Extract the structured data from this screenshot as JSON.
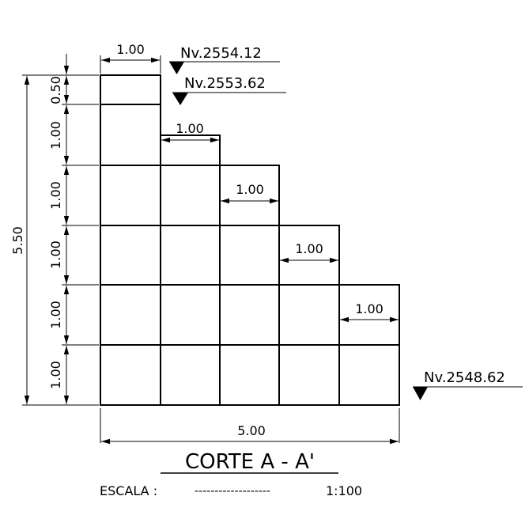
{
  "dimensions": {
    "top_width": "1.00",
    "step_widths": [
      "1.00",
      "1.00",
      "1.00",
      "1.00"
    ],
    "total_width": "5.00",
    "total_height": "5.50",
    "heights": [
      "0.50",
      "1.00",
      "1.00",
      "1.00",
      "1.00",
      "1.00"
    ]
  },
  "levels": {
    "top": "Nv.2554.12",
    "second": "Nv.2553.62",
    "bottom": "Nv.2548.62"
  },
  "title": "CORTE A - A'",
  "scale": {
    "label": "ESCALA :",
    "dashes": "-------------------",
    "value": "1:100"
  }
}
